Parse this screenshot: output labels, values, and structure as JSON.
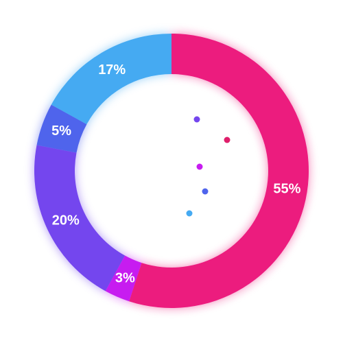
{
  "chart_data": {
    "type": "pie",
    "variant": "donut",
    "slices": [
      {
        "label": "55%",
        "value": 55,
        "color": "#EC1C7E"
      },
      {
        "label": "3%",
        "value": 3,
        "color": "#C71CF0"
      },
      {
        "label": "20%",
        "value": 20,
        "color": "#7446EE"
      },
      {
        "label": "5%",
        "value": 5,
        "color": "#4F64EC"
      },
      {
        "label": "17%",
        "value": 17,
        "color": "#45AAF2"
      }
    ],
    "legend_dots": [
      {
        "color": "#7446EE"
      },
      {
        "color": "#DF1F6B"
      },
      {
        "color": "#C71CF0"
      },
      {
        "color": "#4F64EC"
      },
      {
        "color": "#45AAF2"
      }
    ],
    "title": "",
    "legend": "none"
  }
}
